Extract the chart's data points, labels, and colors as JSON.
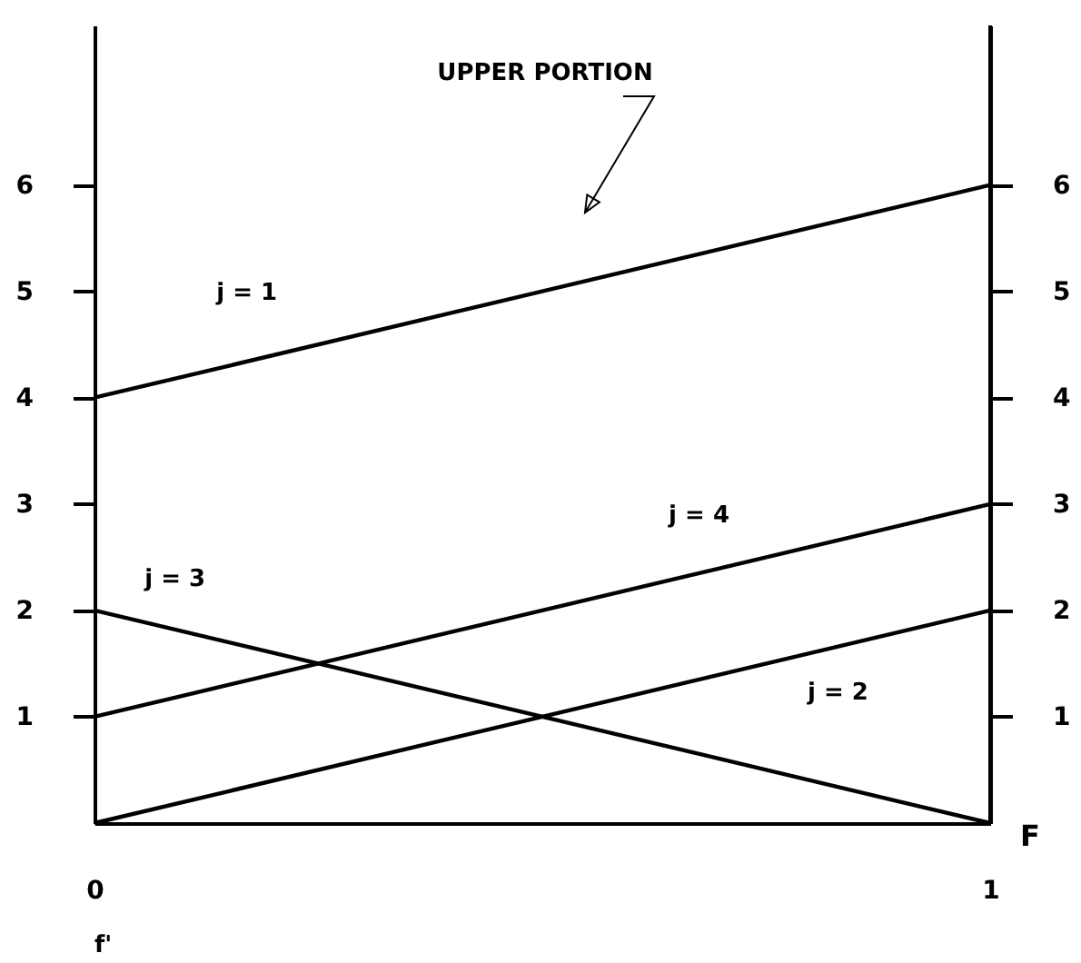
{
  "chart_data": {
    "type": "line",
    "x": [
      0,
      1
    ],
    "xlim": [
      0,
      1
    ],
    "xticks": [
      0,
      1
    ],
    "ylim": [
      0,
      7.5
    ],
    "yticks": [
      1,
      2,
      3,
      4,
      5,
      6
    ],
    "y2lim": [
      0,
      7.5
    ],
    "y2ticks": [
      1,
      2,
      3,
      4,
      5,
      6
    ],
    "xlabel": "F",
    "line_style": "solid",
    "series": [
      {
        "name": "j = 1",
        "color": "#000000",
        "values": [
          4,
          6
        ]
      },
      {
        "name": "j = 2",
        "color": "#000000",
        "values": [
          0,
          2
        ]
      },
      {
        "name": "j = 3",
        "color": "#000000",
        "values": [
          2,
          0
        ]
      },
      {
        "name": "j = 4",
        "color": "#000000",
        "values": [
          1,
          3
        ]
      }
    ],
    "annotations": [
      "UPPER PORTION",
      "f'"
    ]
  }
}
